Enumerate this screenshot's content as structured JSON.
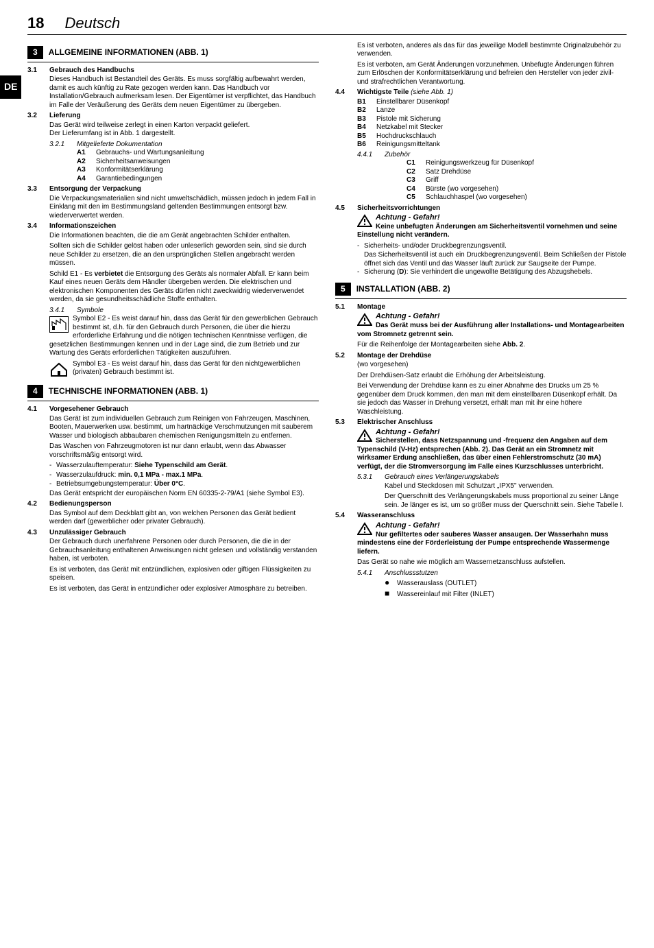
{
  "header": {
    "page_number": "18",
    "language": "Deutsch",
    "lang_tab": "DE"
  },
  "left": {
    "sec3": {
      "num": "3",
      "title": "ALLGEMEINE INFORMATIONEN (ABB. 1)",
      "s31": {
        "num": "3.1",
        "title": "Gebrauch des Handbuchs",
        "body": "Dieses Handbuch ist Bestandteil des Geräts. Es muss sorgfältig aufbewahrt werden, damit es auch künftig zu Rate gezogen werden kann. Das Handbuch vor Installation/Gebrauch aufmerksam lesen. Der Eigentümer ist verpflichtet, das Handbuch im Falle der Veräußerung des Geräts dem neuen Eigentümer zu übergeben."
      },
      "s32": {
        "num": "3.2",
        "title": "Lieferung",
        "body": "Das Gerät wird teilweise zerlegt in einen Karton verpackt geliefert.\nDer Lieferumfang ist in Abb. 1 dargestellt.",
        "ss321": {
          "num": "3.2.1",
          "title": "Mitgelieferte Dokumentation",
          "items": [
            {
              "code": "A1",
              "text": "Gebrauchs- und Wartungsanleitung"
            },
            {
              "code": "A2",
              "text": "Sicherheitsanweisungen"
            },
            {
              "code": "A3",
              "text": "Konformitätserklärung"
            },
            {
              "code": "A4",
              "text": "Garantiebedingungen"
            }
          ]
        }
      },
      "s33": {
        "num": "3.3",
        "title": "Entsorgung der Verpackung",
        "body": "Die Verpackungsmaterialien sind nicht umweltschädlich, müssen jedoch in jedem Fall in Einklang mit den im Bestimmungsland geltenden Bestimmungen entsorgt bzw. wiederverwertet werden."
      },
      "s34": {
        "num": "3.4",
        "title": "Informationszeichen",
        "body1": "Die Informationen beachten, die die am Gerät angebrachten Schilder enthalten.",
        "body2": "Sollten sich die Schilder gelöst haben oder unleserlich geworden sein, sind sie durch neue Schilder zu ersetzen, die an den ursprünglichen Stellen angebracht werden müssen.",
        "body3_pre": "Schild E1 - Es ",
        "body3_bold": "verbietet",
        "body3_post": " die Entsorgung des Geräts als normaler Abfall. Er kann beim Kauf eines neuen Geräts dem Händler übergeben werden. Die elektrischen und elektronischen Komponenten des Geräts dürfen nicht zweckwidrig wiederverwendet werden, da sie gesundheitsschädliche Stoffe enthalten.",
        "ss341": {
          "num": "3.4.1",
          "title": "Symbole",
          "e2": "Symbol E2 - Es weist darauf hin, dass das Gerät für den gewerblichen Gebrauch bestimmt ist, d.h. für den Gebrauch durch Personen, die über die hierzu erforderliche Erfahrung und die nötigen technischen Kenntnisse verfügen, die gesetzlichen Bestimmungen kennen und in der Lage sind, die zum Betrieb und zur Wartung des Geräts erforderlichen Tätigkeiten auszuführen.",
          "e3": "Symbol E3 - Es weist darauf hin, dass das Gerät für den nichtgewerblichen (privaten) Gebrauch bestimmt ist."
        }
      }
    },
    "sec4": {
      "num": "4",
      "title": "TECHNISCHE INFORMATIONEN (ABB. 1)",
      "s41": {
        "num": "4.1",
        "title": "Vorgesehener Gebrauch",
        "body1": "Das Gerät ist zum individuellen Gebrauch zum Reinigen von Fahrzeugen, Maschinen, Booten, Mauerwerken usw. bestimmt, um hartnäckige Verschmutzungen mit sauberem Wasser und biologisch abbaubaren chemischen Renigungsmitteln zu entfernen.",
        "body2": "Das Waschen von Fahrzeugmotoren ist nur dann erlaubt, wenn das Abwasser vorschriftsmäßig entsorgt wird.",
        "dash": [
          {
            "pre": "Wasserzulauftemperatur: ",
            "bold": "Siehe Typenschild am Gerät",
            "post": "."
          },
          {
            "pre": "Wasserzulaufdruck: ",
            "bold": "min. 0,1 MPa - max.1 MPa",
            "post": "."
          },
          {
            "pre": "Betriebsumgebungstemperatur: ",
            "bold": "Über 0°C",
            "post": "."
          }
        ],
        "body3": "Das Gerät entspricht der europäischen Norm EN 60335-2-79/A1 (siehe Symbol E3)."
      },
      "s42": {
        "num": "4.2",
        "title": "Bedienungsperson",
        "body": "Das Symbol auf dem Deckblatt gibt an, von welchen Personen das Gerät bedient werden darf (gewerblicher oder privater Gebrauch)."
      },
      "s43": {
        "num": "4.3",
        "title": "Unzulässiger Gebrauch",
        "body1": "Der Gebrauch durch unerfahrene Personen oder durch Personen, die die in der Gebrauchsanleitung enthaltenen Anweisungen nicht gelesen und vollständig verstanden haben, ist verboten.",
        "body2": "Es ist verboten, das Gerät mit entzündlichen, explosiven oder giftigen Flüssigkeiten zu speisen.",
        "body3": "Es ist verboten, das Gerät in entzündlicher oder explosiver Atmosphäre zu betreiben."
      }
    }
  },
  "right": {
    "top": {
      "p1": "Es ist verboten, anderes als das für das jeweilige Modell bestimmte Originalzubehör zu verwenden.",
      "p2": "Es ist verboten, am Gerät Änderungen vorzunehmen. Unbefugte Änderungen führen zum Erlöschen der Konformitätserklärung und befreien den Hersteller von jeder zivil- und strafrechtlichen Verantwortung."
    },
    "s44": {
      "num": "4.4",
      "title": "Wichtigste Teile ",
      "title_it": "(siehe Abb. 1)",
      "items": [
        {
          "code": "B1",
          "text": "Einstellbarer Düsenkopf"
        },
        {
          "code": "B2",
          "text": "Lanze"
        },
        {
          "code": "B3",
          "text": "Pistole mit Sicherung"
        },
        {
          "code": "B4",
          "text": "Netzkabel mit Stecker"
        },
        {
          "code": "B5",
          "text": "Hochdruckschlauch"
        },
        {
          "code": "B6",
          "text": "Reinigungsmitteltank"
        }
      ],
      "ss441": {
        "num": "4.4.1",
        "title": "Zubehör",
        "items": [
          {
            "code": "C1",
            "text": "Reinigungswerkzeug für Düsenkopf"
          },
          {
            "code": "C2",
            "text": "Satz Drehdüse"
          },
          {
            "code": "C3",
            "text": "Griff"
          },
          {
            "code": "C4",
            "text": "Bürste (wo vorgesehen)"
          },
          {
            "code": "C5",
            "text": "Schlauchhaspel (wo vorgesehen)"
          }
        ]
      }
    },
    "s45": {
      "num": "4.5",
      "title": "Sicherheitsvorrichtungen",
      "warn_title": "Achtung - Gefahr!",
      "warn_body": "Keine unbefugten Änderungen am Sicherheitsventil vornehmen und seine Einstellung nicht verändern.",
      "dash1": "Sicherheits- und/oder Druckbegrenzungsventil.",
      "dash1_body": "Das Sicherheitsventil ist auch ein Druckbegrenzungsventil. Beim Schließen der Pistole öffnet sich das Ventil und das Wasser läuft zurück zur Saugseite der Pumpe.",
      "dash2_pre": "Sicherung (",
      "dash2_bold": "D",
      "dash2_post": "): Sie verhindert die ungewollte Betätigung des Abzugshebels."
    },
    "sec5": {
      "num": "5",
      "title": "INSTALLATION (ABB. 2)",
      "s51": {
        "num": "5.1",
        "title": "Montage",
        "warn_title": "Achtung - Gefahr!",
        "warn_body": "Das Gerät muss bei der Ausführung aller Installations- und Montagearbeiten vom Stromnetz getrennt sein.",
        "body_pre": "Für die Reihenfolge der Montagearbeiten siehe ",
        "body_bold": "Abb. 2",
        "body_post": "."
      },
      "s52": {
        "num": "5.2",
        "title": "Montage der Drehdüse",
        "sub": "(wo vorgesehen)",
        "body1": "Der Drehdüsen-Satz erlaubt die Erhöhung der Arbeitsleistung.",
        "body2": "Bei Verwendung der Drehdüse kann es zu einer Abnahme des Drucks um 25 % gegenüber dem Druck kommen, den man mit dem einstellbaren Düsenkopf erhält. Da sie jedoch das Wasser in Drehung versetzt, erhält man mit ihr eine höhere Waschleistung."
      },
      "s53": {
        "num": "5.3",
        "title": "Elektrischer Anschluss",
        "warn_title": "Achtung - Gefahr!",
        "warn_body": "Sicherstellen, dass Netzspannung und -frequenz den Angaben auf dem Typenschild (V-Hz) entsprechen (Abb. 2). Das Gerät an ein Stromnetz mit wirksamer Erdung anschließen, das über einen Fehlerstromschutz (30 mA) verfügt, der die Stromversorgung im Falle eines Kurzschlusses unterbricht.",
        "ss531": {
          "num": "5.3.1",
          "title": "Gebrauch eines Verlängerungskabels",
          "body1": "Kabel und Steckdosen mit Schutzart „IPX5\" verwenden.",
          "body2": "Der Querschnitt des Verlängerungskabels muss proportional zu seiner Länge sein. Je länger es ist, um so größer muss der Querschnitt sein. Siehe Tabelle I."
        }
      },
      "s54": {
        "num": "5.4",
        "title": "Wasseranschluss",
        "warn_title": "Achtung - Gefahr!",
        "warn_body": "Nur gefiltertes oder sauberes Wasser ansaugen. Der Wasserhahn muss mindestens eine der Förderleistung der Pumpe entsprechende Wassermenge liefern.",
        "body": "Das Gerät so nahe wie möglich am Wassernetzanschluss aufstellen.",
        "ss541": {
          "num": "5.4.1",
          "title": "Anschlussstutzen",
          "bullets": [
            {
              "sym": "●",
              "text": "Wasserauslass (OUTLET)"
            },
            {
              "sym": "■",
              "text": "Wassereinlauf mit Filter (INLET)"
            }
          ]
        }
      }
    }
  }
}
